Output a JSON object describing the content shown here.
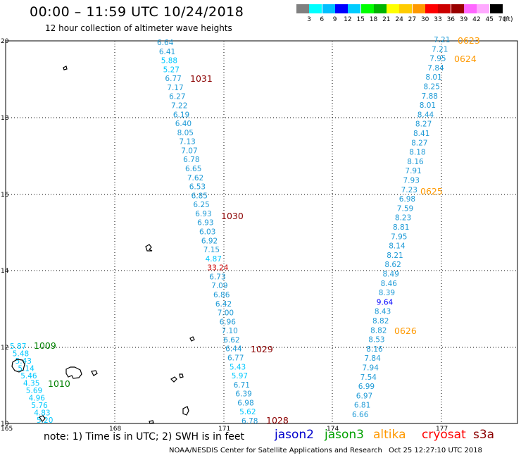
{
  "header": {
    "title": "00:00 – 11:59 UTC 10/24/2018",
    "subtitle": "12 hour collection of altimeter wave heights"
  },
  "legend": {
    "colors": [
      "#808080",
      "#00ffff",
      "#00bfff",
      "#0000ff",
      "#00ccff",
      "#00ff00",
      "#00b400",
      "#ffff00",
      "#ffcc00",
      "#ff9900",
      "#ff0000",
      "#cc0000",
      "#990000",
      "#ff66ff",
      "#ffaaff",
      "#000000"
    ],
    "labels": [
      "3",
      "6",
      "9",
      "12",
      "15",
      "18",
      "21",
      "24",
      "27",
      "30",
      "33",
      "36",
      "39",
      "42",
      "45",
      "70"
    ],
    "unit": "(ft)"
  },
  "map": {
    "lon_labels": [
      "165",
      "168",
      "171",
      "174",
      "177"
    ],
    "lat_labels": [
      "20",
      "18",
      "16",
      "14",
      "12",
      "10"
    ],
    "pass_labels": [
      {
        "text": "1031",
        "color": "#8b0000"
      },
      {
        "text": "1030",
        "color": "#8b0000"
      },
      {
        "text": "1029",
        "color": "#8b0000"
      },
      {
        "text": "1028",
        "color": "#8b0000"
      },
      {
        "text": "1009",
        "color": "#008000"
      },
      {
        "text": "1010",
        "color": "#008000"
      },
      {
        "text": "0623",
        "color": "#ff9900"
      },
      {
        "text": "0624",
        "color": "#ff9900"
      },
      {
        "text": "0625",
        "color": "#ff9900"
      },
      {
        "text": "0626",
        "color": "#ff9900"
      }
    ],
    "track_a": [
      "6.64",
      "6.41",
      "5.88",
      "5.27",
      "6.77",
      "7.17",
      "6.27",
      "7.22",
      "6.19",
      "6.40",
      "8.05",
      "7.13",
      "7.07",
      "6.78",
      "6.65",
      "7.62",
      "6.53",
      "6.85",
      "6.25",
      "6.93",
      "6.93",
      "6.03",
      "6.92",
      "7.15",
      "4.87",
      "33.24",
      "6.73",
      "7.09",
      "6.86",
      "6.42",
      "7.00",
      "6.96",
      "7.10",
      "6.62",
      "6.44",
      "6.77",
      "5.43",
      "5.97",
      "6.71",
      "6.39",
      "6.98",
      "5.62",
      "6.78"
    ],
    "track_b": [
      "7.21",
      "7.21",
      "7.95",
      "7.84",
      "8.01",
      "8.25",
      "7.88",
      "8.01",
      "8.44",
      "8.27",
      "8.41",
      "8.27",
      "8.18",
      "8.16",
      "7.91",
      "7.93",
      "7.23",
      "6.98",
      "7.59",
      "8.23",
      "8.81",
      "7.95",
      "8.14",
      "8.21",
      "8.62",
      "8.49",
      "8.46",
      "8.39",
      "9.64",
      "8.43",
      "8.82",
      "8.82",
      "8.53",
      "8.16",
      "7.84",
      "7.94",
      "7.54",
      "6.99",
      "6.97",
      "6.81",
      "6.66"
    ],
    "track_c": [
      "5.87",
      "5.48",
      "5.43",
      "5.14",
      "5.46",
      "4.35",
      "5.69",
      "4.96",
      "5.76",
      "4.83",
      "5.20"
    ]
  },
  "footer": {
    "note": "note: 1) Time is in UTC; 2) SWH is in feet",
    "satellites": [
      {
        "name": "jason2",
        "color": "#0000cc"
      },
      {
        "name": "jason3",
        "color": "#00a000"
      },
      {
        "name": "altika",
        "color": "#ff9900"
      },
      {
        "name": "cryosat",
        "color": "#ff0000"
      },
      {
        "name": "s3a",
        "color": "#8b0000"
      }
    ],
    "credit": "NOAA/NESDIS Center for Satellite Applications and Research",
    "timestamp": "Oct 25 12:27:10 UTC 2018"
  }
}
